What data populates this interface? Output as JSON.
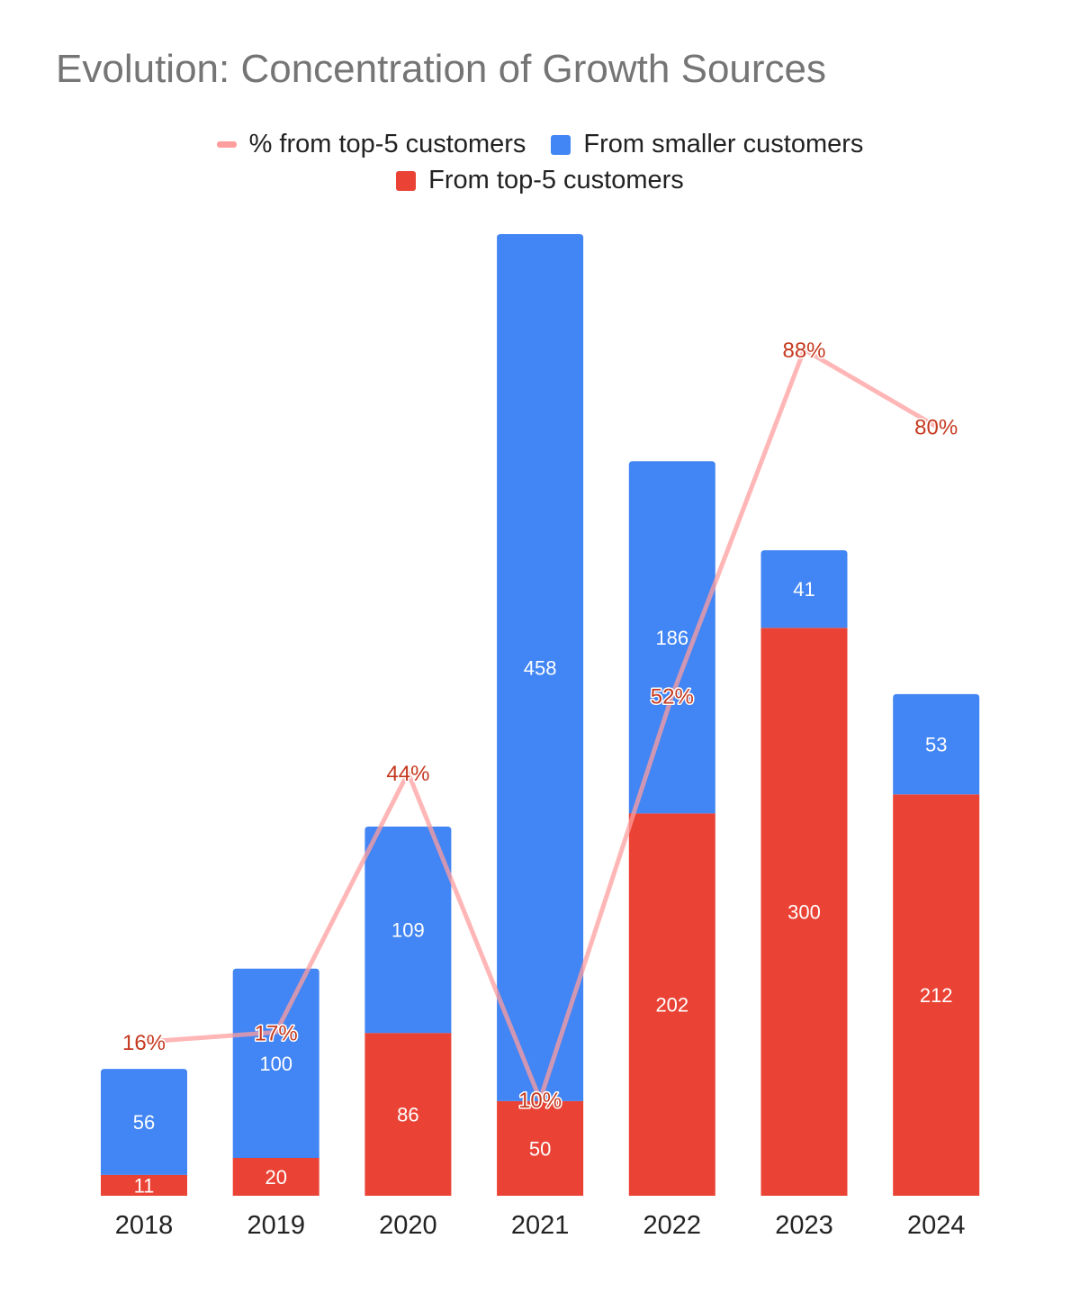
{
  "chart_data": {
    "type": "bar",
    "stacked": true,
    "title": "Evolution: Concentration of Growth Sources",
    "xlabel": "",
    "ylabel": "",
    "categories": [
      "2018",
      "2019",
      "2020",
      "2021",
      "2022",
      "2023",
      "2024"
    ],
    "series": [
      {
        "name": "From top-5 customers",
        "type": "bar",
        "values": [
          11,
          20,
          86,
          50,
          202,
          300,
          212
        ],
        "color": "#EA4335"
      },
      {
        "name": "From smaller customers",
        "type": "bar",
        "values": [
          56,
          100,
          109,
          458,
          186,
          41,
          53
        ],
        "color": "#4285F4"
      },
      {
        "name": "% from top-5 customers",
        "type": "line",
        "values": [
          16,
          17,
          44,
          10,
          52,
          88,
          80
        ],
        "labels": [
          "16%",
          "17%",
          "44%",
          "10%",
          "52%",
          "88%",
          "80%"
        ],
        "color": "#FF9E9E",
        "label_color": "#C5391F"
      }
    ],
    "ylim": [
      0,
      508
    ],
    "secondary_ylim": [
      0,
      100
    ],
    "legend_position": "top",
    "grid": false
  }
}
